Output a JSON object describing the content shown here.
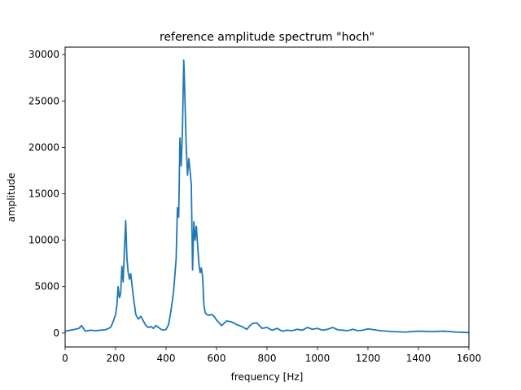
{
  "chart_data": {
    "type": "line",
    "title": "reference amplitude spectrum \"hoch\"",
    "xlabel": "frequency [Hz]",
    "ylabel": "amplitude",
    "xlim": [
      0,
      1600
    ],
    "ylim": [
      -1500,
      30800
    ],
    "xticks": [
      0,
      200,
      400,
      600,
      800,
      1000,
      1200,
      1400,
      1600
    ],
    "yticks": [
      0,
      5000,
      10000,
      15000,
      20000,
      25000,
      30000
    ],
    "grid": false,
    "line_color": "#1f77b4",
    "series": [
      {
        "x": [
          0,
          20,
          40,
          55,
          65,
          80,
          100,
          120,
          140,
          160,
          180,
          190,
          200,
          205,
          210,
          215,
          220,
          225,
          230,
          235,
          240,
          245,
          250,
          255,
          260,
          265,
          270,
          280,
          290,
          300,
          310,
          320,
          330,
          340,
          350,
          360,
          370,
          380,
          390,
          400,
          410,
          420,
          430,
          440,
          445,
          450,
          455,
          460,
          465,
          470,
          472,
          475,
          480,
          485,
          490,
          495,
          500,
          505,
          510,
          515,
          520,
          525,
          530,
          535,
          540,
          545,
          550,
          555,
          560,
          570,
          580,
          590,
          600,
          620,
          640,
          660,
          680,
          700,
          720,
          740,
          760,
          780,
          800,
          820,
          840,
          860,
          880,
          900,
          920,
          940,
          960,
          980,
          1000,
          1020,
          1040,
          1060,
          1080,
          1100,
          1120,
          1140,
          1160,
          1180,
          1200,
          1250,
          1300,
          1350,
          1400,
          1450,
          1500,
          1550,
          1600
        ],
        "y": [
          200,
          300,
          400,
          500,
          800,
          200,
          300,
          250,
          300,
          350,
          600,
          1200,
          2000,
          3000,
          5000,
          3800,
          4200,
          7200,
          5500,
          9000,
          12100,
          8000,
          6500,
          5800,
          6400,
          5200,
          4000,
          2000,
          1500,
          1800,
          1300,
          800,
          600,
          700,
          500,
          800,
          600,
          400,
          300,
          400,
          900,
          2500,
          4500,
          8000,
          13500,
          12500,
          21000,
          18000,
          22000,
          29400,
          28000,
          25000,
          20000,
          17000,
          18800,
          17500,
          16000,
          6800,
          12000,
          10000,
          11500,
          9500,
          7500,
          6500,
          7000,
          6000,
          3000,
          2200,
          2000,
          1900,
          2000,
          1800,
          1400,
          800,
          1300,
          1200,
          900,
          700,
          400,
          1000,
          1100,
          500,
          600,
          300,
          500,
          200,
          300,
          250,
          400,
          300,
          600,
          400,
          500,
          300,
          400,
          600,
          350,
          300,
          250,
          400,
          250,
          300,
          450,
          250,
          150,
          100,
          200,
          150,
          200,
          100,
          50
        ]
      }
    ]
  }
}
